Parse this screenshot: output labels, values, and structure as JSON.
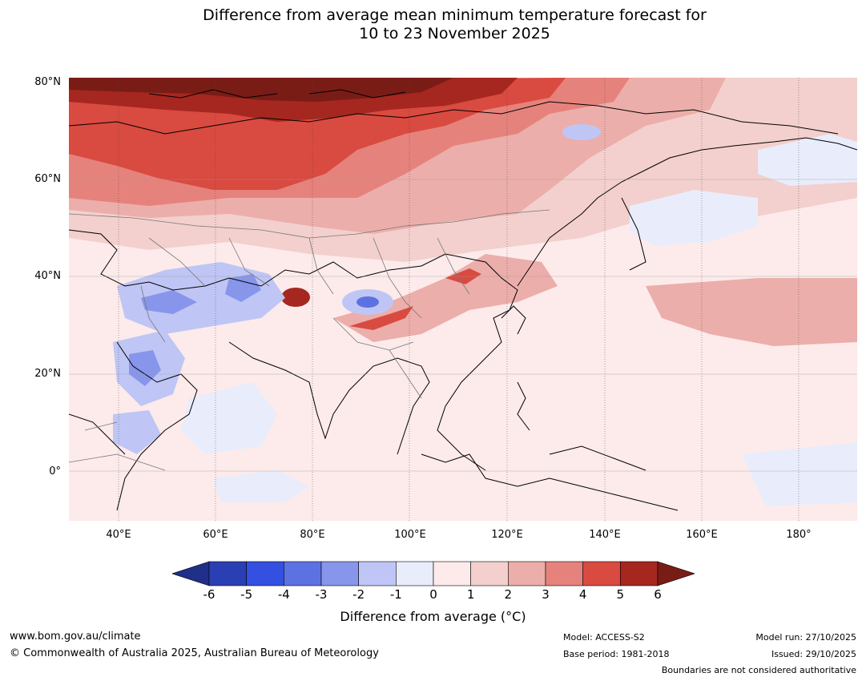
{
  "title": {
    "line1": "Difference from average mean minimum temperature forecast for",
    "line2": "10 to 23 November 2025"
  },
  "axes": {
    "lat_labels": [
      "80°N",
      "60°N",
      "40°N",
      "20°N",
      "0°"
    ],
    "lon_labels": [
      "40°E",
      "60°E",
      "80°E",
      "100°E",
      "120°E",
      "140°E",
      "160°E",
      "180°"
    ]
  },
  "colorbar": {
    "ticks": [
      "-6",
      "-5",
      "-4",
      "-3",
      "-2",
      "-1",
      "0",
      "1",
      "2",
      "3",
      "4",
      "5",
      "6"
    ],
    "colors": [
      "#1f2f8a",
      "#2b3fb4",
      "#3350e0",
      "#5d72e2",
      "#8796ea",
      "#bfc6f5",
      "#e9ecfb",
      "#fcebea",
      "#f3d0cd",
      "#ecaeaa",
      "#e6827c",
      "#d94a40",
      "#a6271f",
      "#7a1c16"
    ],
    "label": "Difference from average ($^\\circ$C)",
    "label_display": "Difference from average (°C)"
  },
  "footer": {
    "website": "www.bom.gov.au/climate",
    "copyright": "© Commonwealth of Australia 2025, Australian Bureau of Meteorology",
    "model": "Model: ACCESS-S2",
    "base_period": "Base period: 1981-2018",
    "model_run": "Model run: 27/10/2025",
    "issued": "Issued: 29/10/2025",
    "boundaries_note": "Boundaries are not considered authoritative"
  }
}
